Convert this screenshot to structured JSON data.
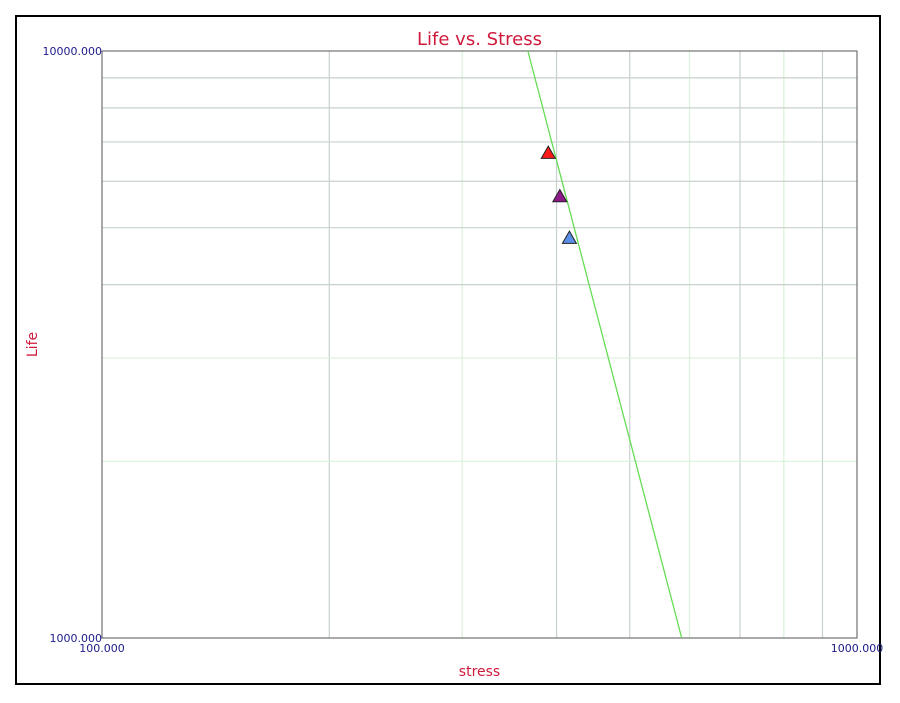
{
  "chart_data": {
    "type": "scatter",
    "title": "Life vs. Stress",
    "xlabel": "stress",
    "ylabel": "Life",
    "xscale": "log",
    "yscale": "log",
    "xlim": [
      100,
      1000
    ],
    "ylim": [
      1000,
      10000
    ],
    "x_tick_labels": [
      "100.000",
      "1000.000"
    ],
    "y_tick_labels": [
      "1000.000",
      "10000.000"
    ],
    "grid": true,
    "x_gridlines_major": [
      200,
      300,
      400,
      500,
      600,
      700,
      800,
      900
    ],
    "x_gridlines_minor": [
      300,
      600,
      800
    ],
    "y_gridlines_major": [
      2000,
      3000,
      4000,
      5000,
      6000,
      7000,
      8000,
      9000
    ],
    "y_gridlines_minor": [
      2000,
      3000
    ],
    "fit_line": {
      "color": "#66dd55",
      "points": [
        [
          366.5,
          10000
        ],
        [
          585.9,
          1000
        ]
      ]
    },
    "series": [
      {
        "values": [
          {
            "x": 390,
            "y": 6700
          }
        ],
        "color": "#ff1a1a",
        "marker": "triangle"
      },
      {
        "values": [
          {
            "x": 404,
            "y": 5650
          }
        ],
        "color": "#8e1a8a",
        "marker": "triangle"
      },
      {
        "values": [
          {
            "x": 416,
            "y": 4800
          }
        ],
        "color": "#5b8ee6",
        "marker": "triangle"
      }
    ],
    "colors": {
      "title": "#d01a3c",
      "axis_label": "#d01a3c",
      "tick_label": "#1c1c8c",
      "grid_major": "#c8d2cc",
      "grid_minor": "#d9f2d9",
      "axis": "#555555"
    }
  }
}
